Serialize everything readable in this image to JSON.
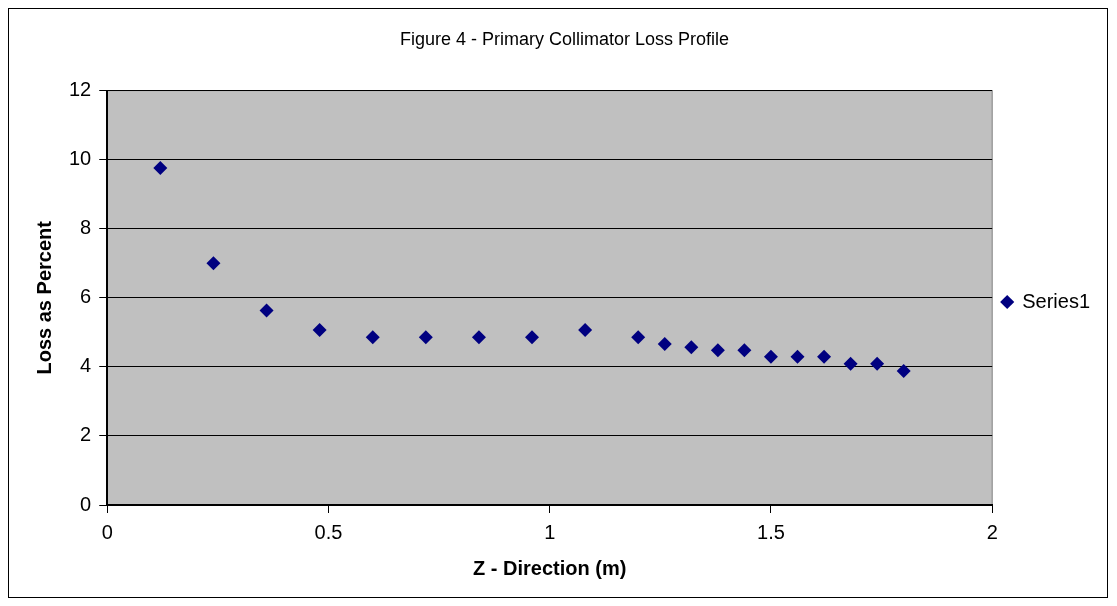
{
  "chart_data": {
    "type": "scatter",
    "title": "Figure 4 - Primary Collimator Loss Profile",
    "xlabel": "Z - Direction (m)",
    "ylabel": "Loss as Percent",
    "x": [
      0.12,
      0.24,
      0.36,
      0.48,
      0.6,
      0.72,
      0.84,
      0.96,
      1.08,
      1.2,
      1.26,
      1.32,
      1.38,
      1.44,
      1.5,
      1.56,
      1.62,
      1.68,
      1.74,
      1.8
    ],
    "series": [
      {
        "name": "Series1",
        "color": "#000080",
        "values": [
          9.76,
          7.0,
          5.63,
          5.07,
          4.86,
          4.86,
          4.86,
          4.86,
          5.07,
          4.86,
          4.66,
          4.57,
          4.48,
          4.48,
          4.29,
          4.29,
          4.29,
          4.09,
          4.09,
          3.88
        ]
      }
    ],
    "xlim": [
      0,
      2
    ],
    "xticks": [
      0,
      0.5,
      1,
      1.5,
      2
    ],
    "ylim": [
      0,
      12
    ],
    "yticks": [
      0,
      2,
      4,
      6,
      8,
      10,
      12
    ],
    "grid": "y",
    "legend": "right",
    "marker": "diamond"
  }
}
